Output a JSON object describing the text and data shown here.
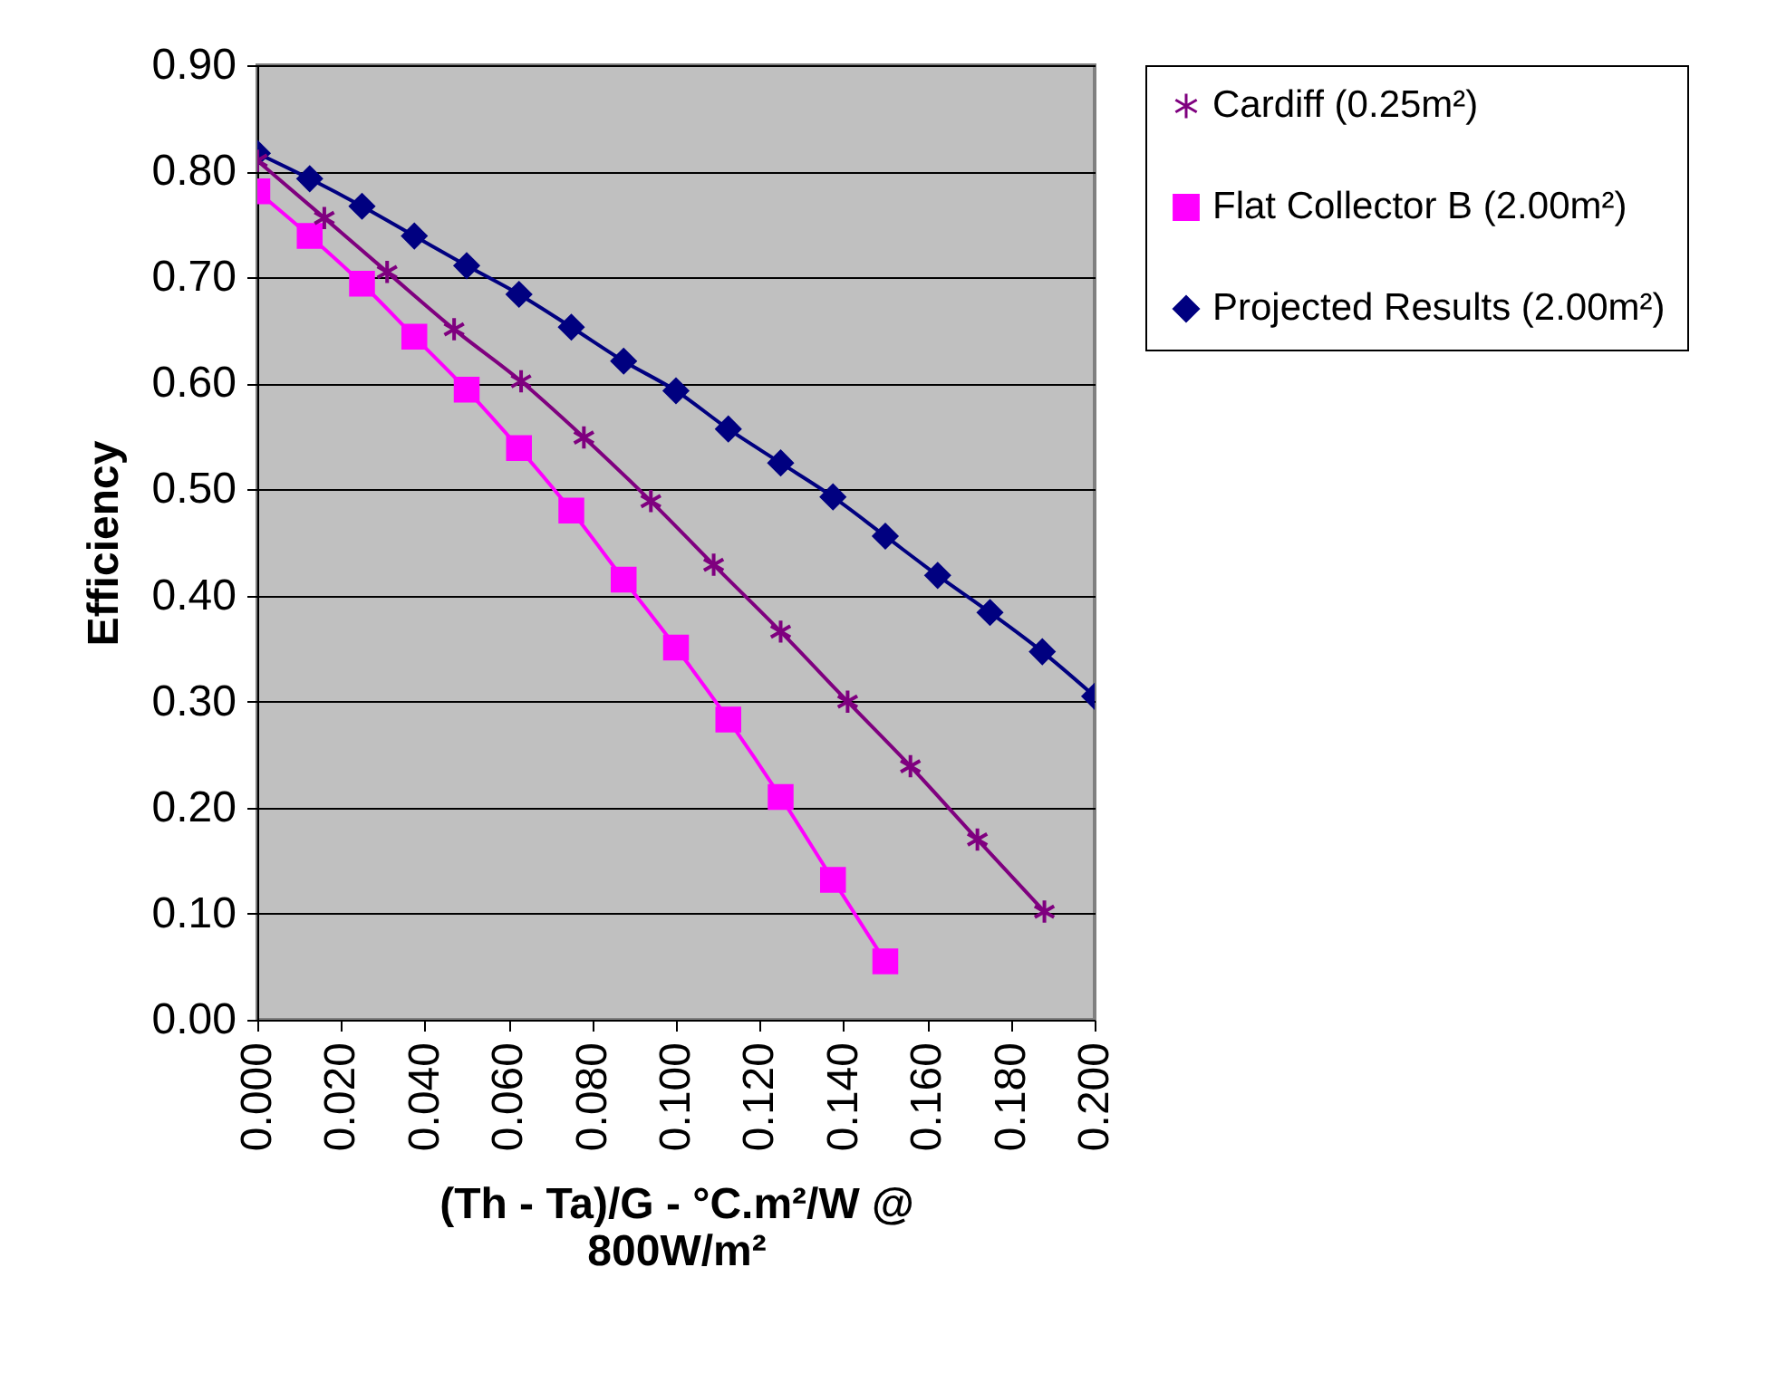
{
  "chart_data": {
    "type": "line",
    "xlabel": "(Th - Ta)/G - °C.m²/W @ 800W/m²",
    "ylabel": "Efficiency",
    "xlim": [
      0,
      0.2
    ],
    "ylim": [
      0,
      0.9
    ],
    "xticks": [
      {
        "value": 0,
        "label": "0.000"
      },
      {
        "value": 0.02,
        "label": "0.020"
      },
      {
        "value": 0.04,
        "label": "0.040"
      },
      {
        "value": 0.06,
        "label": "0.060"
      },
      {
        "value": 0.08,
        "label": "0.080"
      },
      {
        "value": 0.1,
        "label": "0.100"
      },
      {
        "value": 0.12,
        "label": "0.120"
      },
      {
        "value": 0.14,
        "label": "0.140"
      },
      {
        "value": 0.16,
        "label": "0.160"
      },
      {
        "value": 0.18,
        "label": "0.180"
      },
      {
        "value": 0.2,
        "label": "0.200"
      }
    ],
    "yticks": [
      {
        "value": 0,
        "label": "0.00"
      },
      {
        "value": 0.1,
        "label": "0.10"
      },
      {
        "value": 0.2,
        "label": "0.20"
      },
      {
        "value": 0.3,
        "label": "0.30"
      },
      {
        "value": 0.4,
        "label": "0.40"
      },
      {
        "value": 0.5,
        "label": "0.50"
      },
      {
        "value": 0.6,
        "label": "0.60"
      },
      {
        "value": 0.7,
        "label": "0.70"
      },
      {
        "value": 0.8,
        "label": "0.80"
      },
      {
        "value": 0.9,
        "label": "0.90"
      }
    ],
    "grid": "y",
    "legend": "right",
    "series": [
      {
        "name": "Cardiff (0.25m²)",
        "color": "#7f007f",
        "marker": "cross",
        "x": [
          0,
          0.016,
          0.031,
          0.047,
          0.063,
          0.078,
          0.094,
          0.109,
          0.125,
          0.141,
          0.156,
          0.172,
          0.188
        ],
        "values": [
          0.81,
          0.756,
          0.705,
          0.651,
          0.602,
          0.549,
          0.489,
          0.429,
          0.366,
          0.3,
          0.239,
          0.17,
          0.102
        ]
      },
      {
        "name": "Flat Collector B (2.00m²)",
        "color": "#ff00ff",
        "marker": "square",
        "x": [
          0,
          0.0125,
          0.025,
          0.0375,
          0.05,
          0.0625,
          0.075,
          0.0875,
          0.1,
          0.1125,
          0.125,
          0.1375,
          0.15
        ],
        "values": [
          0.781,
          0.739,
          0.694,
          0.644,
          0.594,
          0.539,
          0.48,
          0.415,
          0.351,
          0.283,
          0.21,
          0.132,
          0.055
        ]
      },
      {
        "name": "Projected Results (2.00m²)",
        "color": "#000080",
        "marker": "diamond",
        "x": [
          0,
          0.0125,
          0.025,
          0.0375,
          0.05,
          0.0625,
          0.075,
          0.0875,
          0.1,
          0.1125,
          0.125,
          0.1375,
          0.15,
          0.1625,
          0.175,
          0.1875,
          0.2
        ],
        "values": [
          0.817,
          0.793,
          0.767,
          0.739,
          0.711,
          0.684,
          0.653,
          0.621,
          0.593,
          0.557,
          0.525,
          0.493,
          0.456,
          0.419,
          0.384,
          0.347,
          0.305
        ]
      }
    ]
  }
}
